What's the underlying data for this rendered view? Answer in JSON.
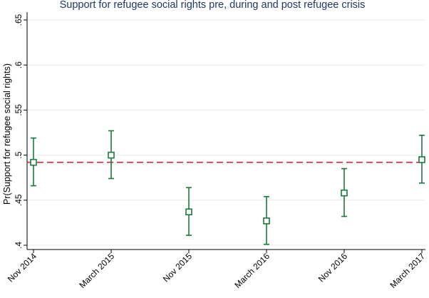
{
  "chart_data": {
    "type": "scatter",
    "title": "Support for refugee social rights pre, during and post refugee crisis",
    "xlabel": "",
    "ylabel": "Pr(Support for refugee social rights)",
    "categories": [
      "Nov 2014",
      "March 2015",
      "Nov 2015",
      "March 2016",
      "Nov 2016",
      "March 2017"
    ],
    "series": [
      {
        "name": "Pr(Support for refugee social rights)",
        "values": [
          0.492,
          0.5,
          0.437,
          0.427,
          0.458,
          0.495
        ],
        "ci_low": [
          0.466,
          0.474,
          0.411,
          0.401,
          0.432,
          0.469
        ],
        "ci_high": [
          0.519,
          0.527,
          0.464,
          0.454,
          0.485,
          0.522
        ],
        "marker": "hollow-square",
        "color": "#1a7a3a"
      }
    ],
    "reference_line": {
      "y": 0.492,
      "style": "dashed",
      "color": "#c8283c"
    },
    "ylim": [
      0.4,
      0.65
    ],
    "yticks": [
      0.4,
      0.45,
      0.5,
      0.55,
      0.6,
      0.65
    ],
    "ytick_labels": [
      ".4",
      ".45",
      ".5",
      ".55",
      ".6",
      ".65"
    ],
    "grid": true,
    "colors": {
      "grid": "#e6eef3",
      "axis": "#000000",
      "title": "#1f3864"
    }
  }
}
